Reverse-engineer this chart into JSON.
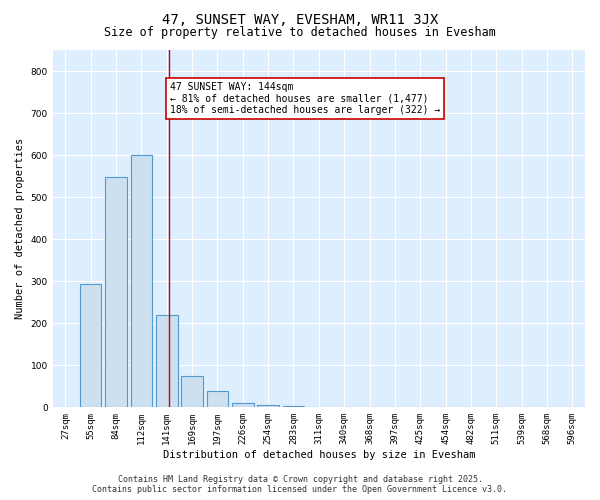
{
  "title": "47, SUNSET WAY, EVESHAM, WR11 3JX",
  "subtitle": "Size of property relative to detached houses in Evesham",
  "xlabel": "Distribution of detached houses by size in Evesham",
  "ylabel": "Number of detached properties",
  "categories": [
    "27sqm",
    "55sqm",
    "84sqm",
    "112sqm",
    "141sqm",
    "169sqm",
    "197sqm",
    "226sqm",
    "254sqm",
    "283sqm",
    "311sqm",
    "340sqm",
    "368sqm",
    "397sqm",
    "425sqm",
    "454sqm",
    "482sqm",
    "511sqm",
    "539sqm",
    "568sqm",
    "596sqm"
  ],
  "values": [
    0,
    293,
    547,
    600,
    220,
    75,
    40,
    10,
    5,
    2,
    1,
    0,
    0,
    0,
    0,
    0,
    0,
    0,
    0,
    0,
    0
  ],
  "bar_color": "#cce0f0",
  "bar_edge_color": "#5599cc",
  "vline_x_index": 4,
  "vline_color": "#cc0000",
  "annotation_line1": "47 SUNSET WAY: 144sqm",
  "annotation_line2": "← 81% of detached houses are smaller (1,477)",
  "annotation_line3": "18% of semi-detached houses are larger (322) →",
  "annotation_box_color": "#cc0000",
  "annotation_bg": "#ffffff",
  "ylim": [
    0,
    850
  ],
  "yticks": [
    0,
    100,
    200,
    300,
    400,
    500,
    600,
    700,
    800
  ],
  "grid_color": "#ddeeff",
  "footer_line1": "Contains HM Land Registry data © Crown copyright and database right 2025.",
  "footer_line2": "Contains public sector information licensed under the Open Government Licence v3.0.",
  "title_fontsize": 10,
  "subtitle_fontsize": 8.5,
  "axis_label_fontsize": 7.5,
  "tick_fontsize": 6.5,
  "annotation_fontsize": 7,
  "footer_fontsize": 6,
  "ylabel_fontsize": 7.5
}
